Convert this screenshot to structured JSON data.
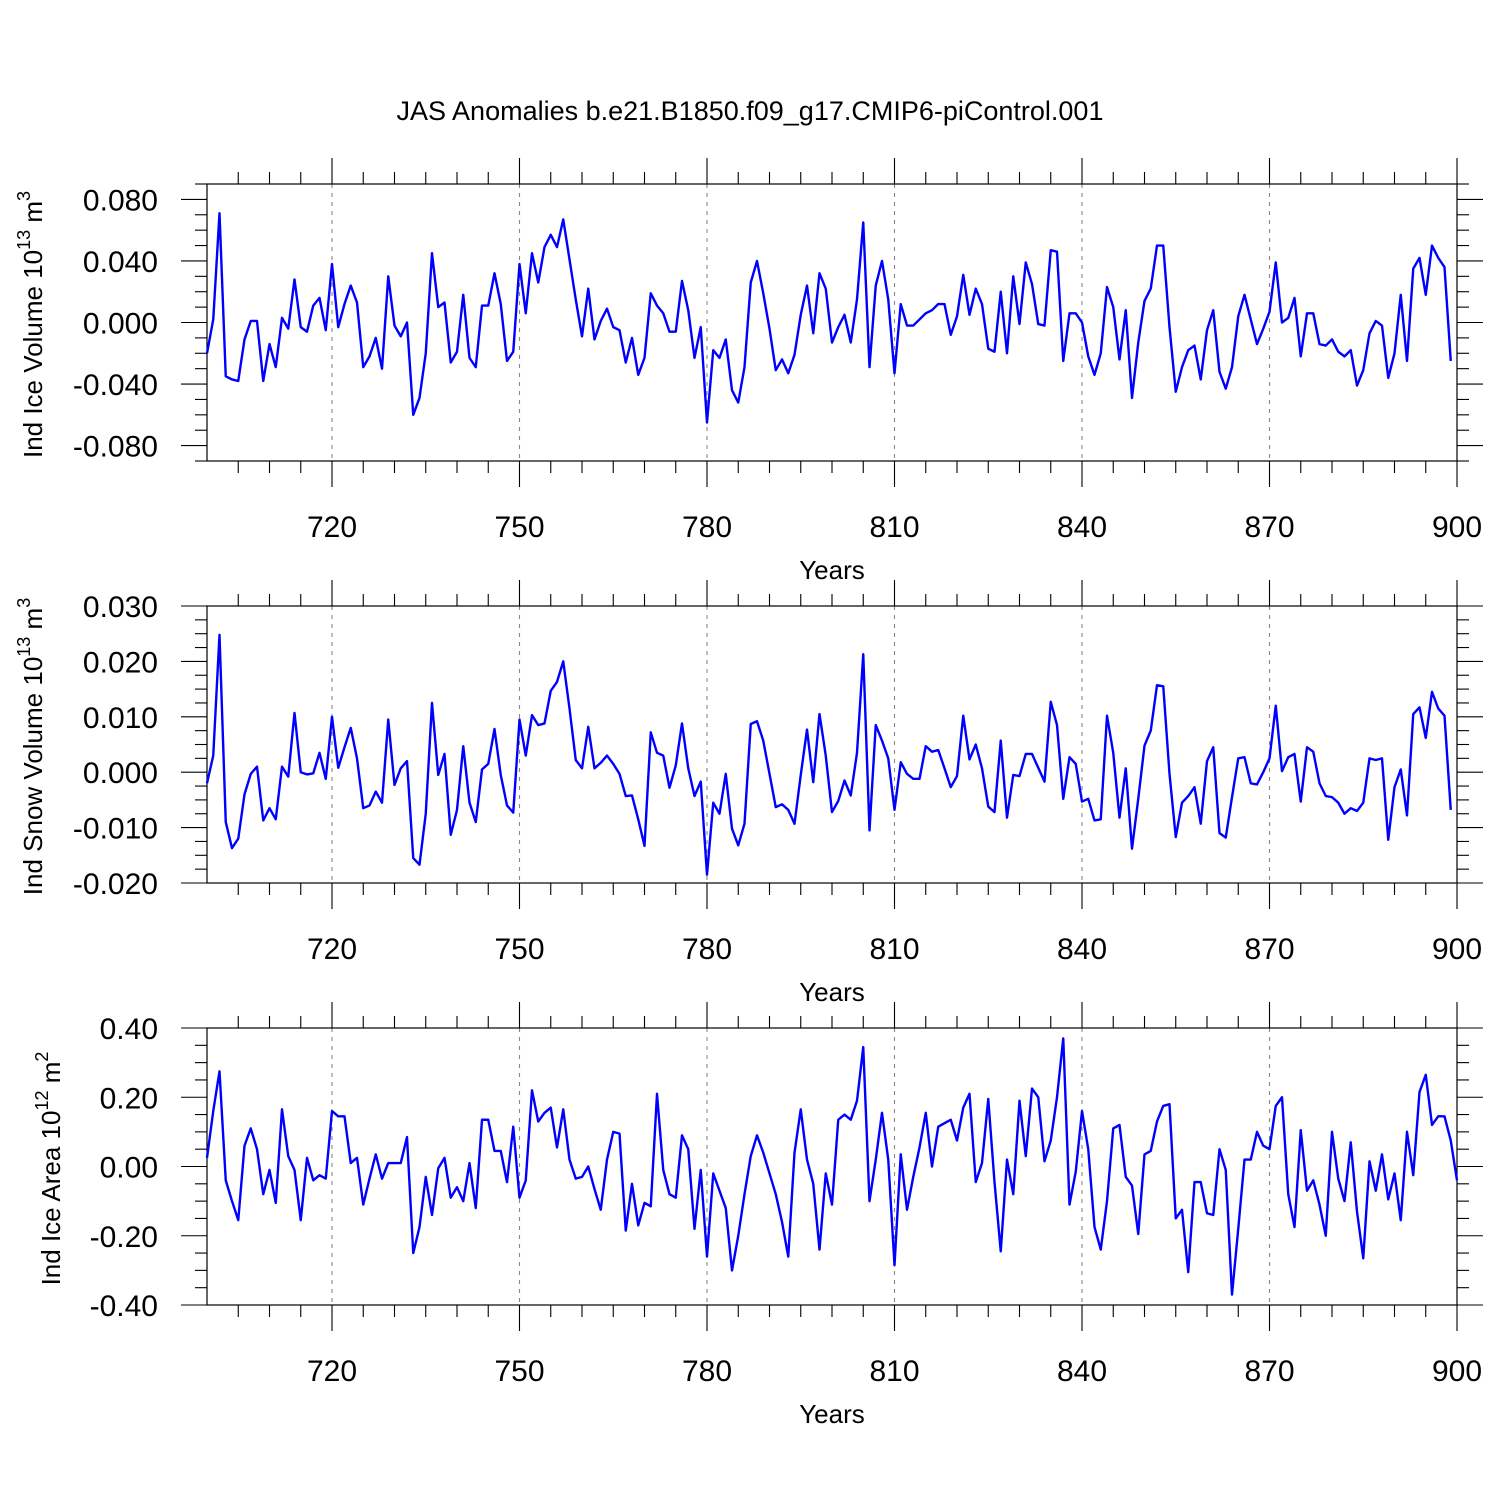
{
  "title": "JAS Anomalies b.e21.B1850.f09_g17.CMIP6-piControl.001",
  "colors": {
    "line": "#0000ff",
    "grid": "#888888",
    "axis": "#000000"
  },
  "chart_data": [
    {
      "type": "line",
      "id": "ice_volume",
      "ylabel_main": "Ind Ice Volume 10",
      "ylabel_exp": "13",
      "ylabel_unit": " m",
      "ylabel_unit_exp": "3",
      "xlabel": "Years",
      "xlim": [
        700,
        900
      ],
      "ylim": [
        -0.09,
        0.09
      ],
      "xticks": [
        720,
        750,
        780,
        810,
        840,
        870,
        900
      ],
      "xtick_labels": [
        "720",
        "750",
        "780",
        "810",
        "840",
        "870",
        "900"
      ],
      "yticks": [
        -0.08,
        -0.04,
        0.0,
        0.04,
        0.08
      ],
      "ytick_labels": [
        "-0.080",
        "-0.040",
        "0.000",
        "0.040",
        "0.080"
      ],
      "grid_x": [
        720,
        750,
        780,
        810,
        840,
        870
      ],
      "x_start": 700,
      "values": [
        -0.02,
        0.002,
        0.071,
        -0.035,
        -0.037,
        -0.038,
        -0.011,
        0.001,
        0.001,
        -0.038,
        -0.014,
        -0.029,
        0.003,
        -0.004,
        0.028,
        -0.003,
        -0.006,
        0.011,
        0.016,
        -0.005,
        0.038,
        -0.003,
        0.012,
        0.024,
        0.013,
        -0.029,
        -0.022,
        -0.01,
        -0.03,
        0.03,
        -0.002,
        -0.009,
        0.0,
        -0.06,
        -0.049,
        -0.02,
        0.045,
        0.01,
        0.013,
        -0.026,
        -0.019,
        0.018,
        -0.023,
        -0.029,
        0.011,
        0.011,
        0.032,
        0.012,
        -0.025,
        -0.019,
        0.038,
        0.006,
        0.045,
        0.026,
        0.049,
        0.057,
        0.049,
        0.067,
        0.041,
        0.015,
        -0.009,
        0.022,
        -0.011,
        0.001,
        0.009,
        -0.003,
        -0.005,
        -0.026,
        -0.01,
        -0.034,
        -0.023,
        0.019,
        0.011,
        0.006,
        -0.006,
        -0.006,
        0.027,
        0.008,
        -0.023,
        -0.003,
        -0.065,
        -0.018,
        -0.023,
        -0.011,
        -0.044,
        -0.052,
        -0.029,
        0.026,
        0.04,
        0.019,
        -0.004,
        -0.031,
        -0.024,
        -0.033,
        -0.021,
        0.005,
        0.024,
        -0.007,
        0.032,
        0.022,
        -0.013,
        -0.003,
        0.005,
        -0.013,
        0.015,
        0.065,
        -0.029,
        0.024,
        0.04,
        0.015,
        -0.033,
        0.012,
        -0.002,
        -0.002,
        0.002,
        0.006,
        0.008,
        0.012,
        0.012,
        -0.008,
        0.004,
        0.031,
        0.005,
        0.022,
        0.012,
        -0.017,
        -0.019,
        0.02,
        -0.02,
        0.03,
        -0.001,
        0.039,
        0.025,
        -0.001,
        -0.002,
        0.047,
        0.046,
        -0.025,
        0.006,
        0.006,
        0.0,
        -0.022,
        -0.034,
        -0.02,
        0.023,
        0.01,
        -0.024,
        0.008,
        -0.049,
        -0.013,
        0.014,
        0.022,
        0.05,
        0.05,
        -0.003,
        -0.045,
        -0.029,
        -0.018,
        -0.015,
        -0.037,
        -0.005,
        0.008,
        -0.032,
        -0.043,
        -0.029,
        0.004,
        0.018,
        0.002,
        -0.014,
        -0.004,
        0.007,
        0.039,
        0.0,
        0.003,
        0.016,
        -0.022,
        0.006,
        0.006,
        -0.014,
        -0.015,
        -0.011,
        -0.019,
        -0.022,
        -0.018,
        -0.041,
        -0.031,
        -0.007,
        0.001,
        -0.002,
        -0.036,
        -0.02,
        0.018,
        -0.025,
        0.035,
        0.042,
        0.018,
        0.05,
        0.042,
        0.036,
        -0.025
      ]
    },
    {
      "type": "line",
      "id": "snow_volume",
      "ylabel_main": "Ind Snow Volume 10",
      "ylabel_exp": "13",
      "ylabel_unit": " m",
      "ylabel_unit_exp": "3",
      "xlabel": "Years",
      "xlim": [
        700,
        900
      ],
      "ylim": [
        -0.02,
        0.03
      ],
      "xticks": [
        720,
        750,
        780,
        810,
        840,
        870,
        900
      ],
      "xtick_labels": [
        "720",
        "750",
        "780",
        "810",
        "840",
        "870",
        "900"
      ],
      "yticks": [
        -0.02,
        -0.01,
        0.0,
        0.01,
        0.02,
        0.03
      ],
      "ytick_labels": [
        "-0.020",
        "-0.010",
        "0.000",
        "0.010",
        "0.020",
        "0.030"
      ],
      "grid_x": [
        720,
        750,
        780,
        810,
        840,
        870
      ],
      "x_start": 700,
      "values": [
        -0.002,
        0.003,
        0.0248,
        -0.009,
        -0.0137,
        -0.012,
        -0.004,
        -0.0003,
        0.001,
        -0.0087,
        -0.0065,
        -0.0085,
        0.001,
        -0.0008,
        0.0107,
        0.0,
        -0.0004,
        -0.0002,
        0.0035,
        -0.0012,
        0.01,
        0.0008,
        0.0045,
        0.008,
        0.0025,
        -0.0065,
        -0.006,
        -0.0035,
        -0.0055,
        0.0095,
        -0.0023,
        0.0007,
        0.002,
        -0.0155,
        -0.0167,
        -0.0075,
        0.0125,
        -0.0005,
        0.0033,
        -0.0113,
        -0.0068,
        0.0047,
        -0.0055,
        -0.009,
        0.0005,
        0.0015,
        0.0078,
        -0.0005,
        -0.006,
        -0.0073,
        0.0095,
        0.003,
        0.0103,
        0.0085,
        0.0088,
        0.0147,
        0.0163,
        0.02,
        0.0115,
        0.0022,
        0.0007,
        0.0082,
        0.0007,
        0.0017,
        0.003,
        0.0015,
        -0.0003,
        -0.0043,
        -0.0042,
        -0.0085,
        -0.0133,
        0.0072,
        0.0035,
        0.003,
        -0.0028,
        0.0012,
        0.0088,
        0.0007,
        -0.0043,
        -0.0017,
        -0.0185,
        -0.0055,
        -0.0075,
        -0.0003,
        -0.0102,
        -0.0132,
        -0.0093,
        0.0087,
        0.0092,
        0.0057,
        -0.0003,
        -0.0063,
        -0.0058,
        -0.0068,
        -0.0093,
        -0.0005,
        0.0077,
        -0.0018,
        0.0105,
        0.003,
        -0.0072,
        -0.0052,
        -0.0015,
        -0.0042,
        0.0035,
        0.0213,
        -0.0105,
        0.0085,
        0.0057,
        0.0025,
        -0.0068,
        0.0018,
        -0.0003,
        -0.0012,
        -0.0012,
        0.0047,
        0.0037,
        0.004,
        0.0007,
        -0.0027,
        -0.0007,
        0.0102,
        0.0023,
        0.005,
        0.0007,
        -0.0062,
        -0.0072,
        0.0057,
        -0.0082,
        -0.0005,
        -0.0007,
        0.0033,
        0.0033,
        0.0008,
        -0.0017,
        0.0127,
        0.0085,
        -0.0048,
        0.0027,
        0.0015,
        -0.0053,
        -0.0048,
        -0.0087,
        -0.0085,
        0.0102,
        0.0035,
        -0.0082,
        0.0007,
        -0.0138,
        -0.0048,
        0.0048,
        0.0075,
        0.0157,
        0.0155,
        -0.0003,
        -0.0117,
        -0.0055,
        -0.0043,
        -0.0027,
        -0.0093,
        0.002,
        0.0045,
        -0.011,
        -0.0118,
        -0.0045,
        0.0025,
        0.0027,
        -0.002,
        -0.0022,
        0.0,
        0.0025,
        0.012,
        0.0002,
        0.0027,
        0.0033,
        -0.0053,
        0.0045,
        0.0037,
        -0.002,
        -0.0043,
        -0.0045,
        -0.0055,
        -0.0075,
        -0.0065,
        -0.007,
        -0.0055,
        0.0025,
        0.0022,
        0.0025,
        -0.0122,
        -0.0027,
        0.0005,
        -0.0078,
        0.0105,
        0.0117,
        0.0062,
        0.0145,
        0.0115,
        0.0102,
        -0.0068
      ]
    },
    {
      "type": "line",
      "id": "ice_area",
      "ylabel_main": "Ind Ice Area 10",
      "ylabel_exp": "12",
      "ylabel_unit": " m",
      "ylabel_unit_exp": "2",
      "xlabel": "Years",
      "xlim": [
        700,
        900
      ],
      "ylim": [
        -0.4,
        0.4
      ],
      "xticks": [
        720,
        750,
        780,
        810,
        840,
        870,
        900
      ],
      "xtick_labels": [
        "720",
        "750",
        "780",
        "810",
        "840",
        "870",
        "900"
      ],
      "yticks": [
        -0.4,
        -0.2,
        0.0,
        0.2,
        0.4
      ],
      "ytick_labels": [
        "-0.40",
        "-0.20",
        "0.00",
        "0.20",
        "0.40"
      ],
      "grid_x": [
        720,
        750,
        780,
        810,
        840,
        870
      ],
      "x_start": 700,
      "values": [
        0.025,
        0.16,
        0.275,
        -0.04,
        -0.1,
        -0.155,
        0.06,
        0.11,
        0.05,
        -0.08,
        -0.01,
        -0.105,
        0.165,
        0.03,
        -0.01,
        -0.155,
        0.025,
        -0.04,
        -0.025,
        -0.035,
        0.16,
        0.145,
        0.145,
        0.01,
        0.025,
        -0.11,
        -0.035,
        0.035,
        -0.035,
        0.01,
        0.01,
        0.01,
        0.085,
        -0.25,
        -0.175,
        -0.03,
        -0.14,
        -0.005,
        0.025,
        -0.09,
        -0.06,
        -0.1,
        0.01,
        -0.12,
        0.135,
        0.135,
        0.045,
        0.045,
        -0.045,
        0.115,
        -0.09,
        -0.04,
        0.22,
        0.13,
        0.155,
        0.17,
        0.055,
        0.165,
        0.02,
        -0.035,
        -0.03,
        0.0,
        -0.065,
        -0.125,
        0.02,
        0.1,
        0.095,
        -0.185,
        -0.05,
        -0.17,
        -0.105,
        -0.115,
        0.21,
        -0.01,
        -0.08,
        -0.09,
        0.09,
        0.05,
        -0.18,
        -0.01,
        -0.26,
        -0.02,
        -0.07,
        -0.12,
        -0.3,
        -0.2,
        -0.08,
        0.03,
        0.09,
        0.04,
        -0.02,
        -0.08,
        -0.16,
        -0.26,
        0.04,
        0.165,
        0.02,
        -0.05,
        -0.24,
        -0.02,
        -0.11,
        0.135,
        0.15,
        0.135,
        0.19,
        0.345,
        -0.1,
        0.02,
        0.155,
        0.02,
        -0.285,
        0.035,
        -0.125,
        -0.03,
        0.055,
        0.155,
        0.0,
        0.115,
        0.125,
        0.135,
        0.075,
        0.17,
        0.21,
        -0.045,
        0.01,
        0.195,
        -0.045,
        -0.245,
        0.02,
        -0.08,
        0.19,
        0.03,
        0.225,
        0.2,
        0.015,
        0.075,
        0.2,
        0.37,
        -0.11,
        -0.015,
        0.16,
        0.05,
        -0.175,
        -0.24,
        -0.1,
        0.11,
        0.12,
        -0.03,
        -0.055,
        -0.195,
        0.035,
        0.045,
        0.13,
        0.175,
        0.18,
        -0.15,
        -0.125,
        -0.305,
        -0.045,
        -0.045,
        -0.135,
        -0.14,
        0.05,
        -0.01,
        -0.37,
        -0.18,
        0.02,
        0.02,
        0.1,
        0.06,
        0.05,
        0.175,
        0.2,
        -0.08,
        -0.175,
        0.105,
        -0.07,
        -0.04,
        -0.11,
        -0.2,
        0.1,
        -0.035,
        -0.1,
        0.07,
        -0.13,
        -0.265,
        0.015,
        -0.07,
        0.035,
        -0.095,
        -0.02,
        -0.155,
        0.1,
        -0.025,
        0.215,
        0.265,
        0.12,
        0.145,
        0.145,
        0.075,
        -0.04
      ]
    }
  ]
}
